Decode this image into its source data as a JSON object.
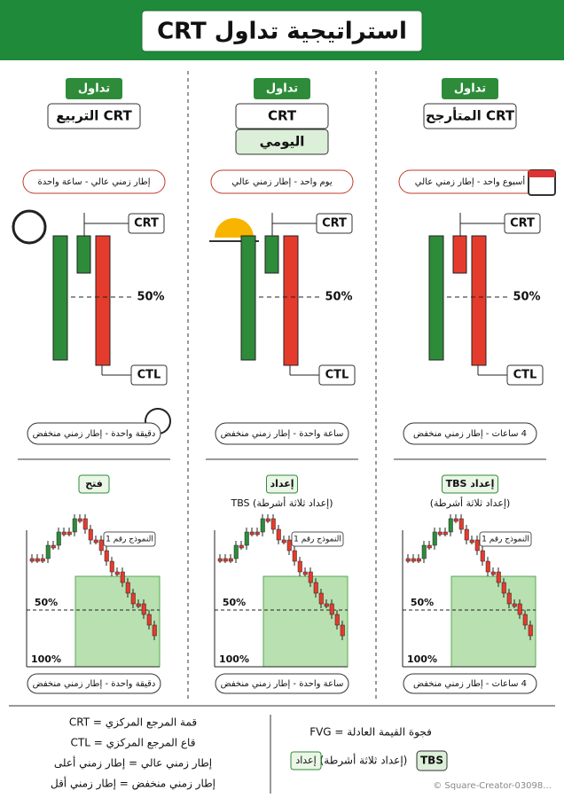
{
  "header": {
    "title": "استراتيجية تداول CRT"
  },
  "columns": [
    {
      "badge": "تداول",
      "name": "CRT المتأرجح",
      "high_tf": "أسبوع واحد - إطار زمني عالي",
      "crt": "CRT",
      "mid": "50%",
      "ctl": "CTL",
      "low_tf": "4 ساعات - إطار زمني منخفض",
      "setup_tag": "إعداد TBS",
      "setup_note": "(إعداد ثلاثة أشرطة)",
      "model": "النموذج رقم 1",
      "level_50": "50%",
      "level_100": "100%",
      "chart_tf": "4 ساعات - إطار زمني منخفض"
    },
    {
      "badge": "تداول",
      "name": "CRT",
      "name_sub": "اليومي",
      "high_tf": "يوم واحد - إطار زمني عالي",
      "crt": "CRT",
      "mid": "50%",
      "ctl": "CTL",
      "low_tf": "ساعة واحدة - إطار زمني منخفض",
      "setup_tag": "إعداد",
      "setup_note": "(إعداد ثلاثة أشرطة) TBS",
      "model": "النموذج رقم 1",
      "level_50": "50%",
      "level_100": "100%",
      "chart_tf": "ساعة واحدة - إطار زمني منخفض"
    },
    {
      "badge": "تداول",
      "name": "CRT التربيع",
      "high_tf": "إطار زمني عالي - ساعة واحدة",
      "crt": "CRT",
      "mid": "50%",
      "ctl": "CTL",
      "low_tf": "دقيقة واحدة - إطار زمني منخفض",
      "setup_tag": "فتح",
      "model": "النموذج رقم 1",
      "level_50": "50%",
      "level_100": "100%",
      "chart_tf": "دقيقة واحدة - إطار زمني منخفض"
    }
  ],
  "legend": {
    "left": [
      "قمة المرجع المركزي = CRT",
      "قاع المرجع المركزي = CTL",
      "إطار زمني عالي = إطار زمني أعلى",
      "إطار زمني منخفض = إطار زمني أقل"
    ],
    "fvg": "فجوة القيمة العادلة = FVG",
    "tbs": "TBS",
    "tbs_note": "(إعداد ثلاثة أشرطة)",
    "setup": "إعداد"
  },
  "watermark": "© Square-Creator-03098..."
}
